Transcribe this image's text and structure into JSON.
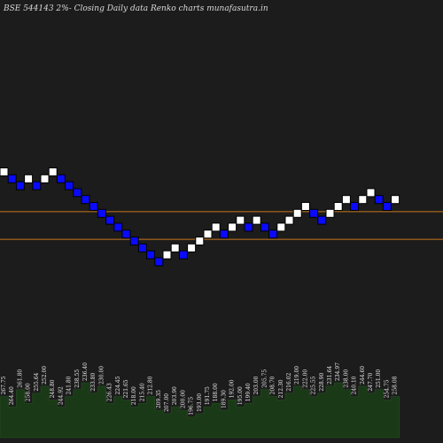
{
  "title": "BSE 544143 2%-  Closing Daily data  Renko  charts munafasutra.in",
  "colors": {
    "background": "#1c1c1c",
    "up_brick": "#ffffff",
    "down_brick": "#0a0aff",
    "brick_border": "#000000",
    "level_line": "#c8781e",
    "volume_fill": "#1a3a17",
    "volume_edge": "#274f22"
  },
  "chart_data": {
    "type": "renko",
    "brick_direction_sequence": [
      "up",
      "down",
      "down",
      "up",
      "down",
      "up",
      "up",
      "down",
      "down",
      "down",
      "down",
      "down",
      "down",
      "down",
      "down",
      "down",
      "down",
      "down",
      "down",
      "down",
      "up",
      "up",
      "down",
      "up",
      "up",
      "up",
      "up",
      "down",
      "up",
      "up",
      "down",
      "up",
      "down",
      "down",
      "up",
      "up",
      "up",
      "up",
      "down",
      "down",
      "up",
      "up",
      "up",
      "down",
      "up",
      "up",
      "down",
      "down",
      "up"
    ],
    "brick_level_sequence": [
      0,
      1,
      2,
      1,
      2,
      1,
      0,
      1,
      2,
      3,
      4,
      5,
      6,
      7,
      8,
      9,
      10,
      11,
      12,
      13,
      12,
      11,
      12,
      11,
      10,
      9,
      8,
      9,
      8,
      7,
      8,
      7,
      8,
      9,
      8,
      7,
      6,
      5,
      6,
      7,
      6,
      5,
      4,
      5,
      4,
      3,
      4,
      5,
      4
    ],
    "horizontal_levels": [
      {
        "name": "upper",
        "brick_level": 5.5
      },
      {
        "name": "lower",
        "brick_level": 9.5
      }
    ],
    "volume_labels": [
      "267.75",
      "264.40",
      "261.80",
      "258.00",
      "255.64",
      "252.00",
      "248.80",
      "244.92",
      "241.80",
      "238.55",
      "236.40",
      "233.80",
      "230.00",
      "226.43",
      "224.45",
      "221.65",
      "218.00",
      "215.40",
      "212.80",
      "209.35",
      "207.00",
      "203.90",
      "200.00",
      "196.75",
      "193.00",
      "191.75",
      "188.00",
      "189.30",
      "192.00",
      "195.00",
      "199.40",
      "203.00",
      "205.75",
      "208.70",
      "212.30",
      "216.02",
      "219.00",
      "222.00",
      "225.55",
      "228.90",
      "231.64",
      "234.97",
      "238.00",
      "240.10",
      "244.60",
      "247.70",
      "251.00",
      "254.75",
      "258.08"
    ],
    "volume_bars": [
      12,
      9,
      14,
      10,
      13,
      15,
      11,
      9,
      12,
      14,
      16,
      13,
      15,
      10,
      12,
      11,
      9,
      10,
      12,
      8,
      7,
      9,
      8,
      6,
      7,
      9,
      10,
      8,
      11,
      9,
      10,
      12,
      14,
      12,
      11,
      13,
      15,
      14,
      12,
      13,
      15,
      16,
      14,
      12,
      15,
      13,
      14,
      11,
      12
    ]
  }
}
